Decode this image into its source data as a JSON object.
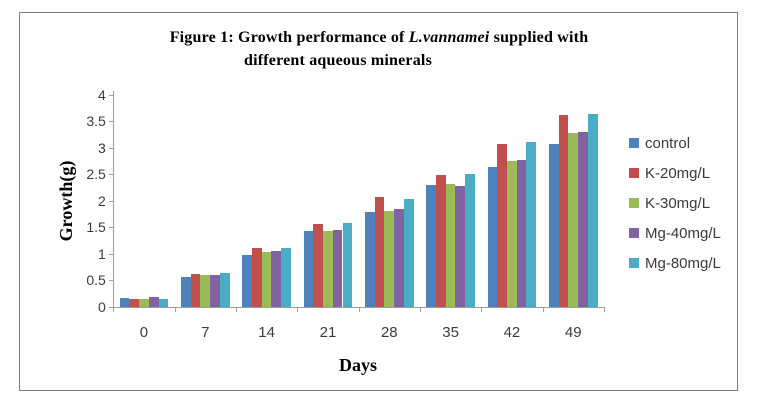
{
  "title": {
    "line1_prefix": "Figure 1: Growth performance of ",
    "line1_italic": "L.vannamei",
    "line1_suffix": " supplied with",
    "line2": "different aqueous minerals"
  },
  "chart_data": {
    "type": "bar",
    "title": "Figure 1: Growth performance of L.vannamei supplied with different aqueous minerals",
    "xlabel": "Days",
    "ylabel": "Growth(g)",
    "categories": [
      "0",
      "7",
      "14",
      "21",
      "28",
      "35",
      "42",
      "49"
    ],
    "series": [
      {
        "name": "control",
        "color": "#4F81BD",
        "values": [
          0.17,
          0.57,
          0.98,
          1.43,
          1.8,
          2.31,
          2.64,
          3.08
        ]
      },
      {
        "name": "K-20mg/L",
        "color": "#C0504D",
        "values": [
          0.15,
          0.63,
          1.12,
          1.57,
          2.07,
          2.5,
          3.08,
          3.63
        ]
      },
      {
        "name": "K-30mg/L",
        "color": "#9BBB59",
        "values": [
          0.16,
          0.61,
          1.03,
          1.43,
          1.81,
          2.33,
          2.75,
          3.28
        ]
      },
      {
        "name": "Mg-40mg/L",
        "color": "#8064A2",
        "values": [
          0.18,
          0.61,
          1.05,
          1.46,
          1.85,
          2.29,
          2.78,
          3.3
        ]
      },
      {
        "name": "Mg-80mg/L",
        "color": "#4BACC6",
        "values": [
          0.16,
          0.65,
          1.12,
          1.58,
          2.03,
          2.51,
          3.11,
          3.65
        ]
      }
    ],
    "ylim": [
      0,
      4
    ],
    "ytick_step": 0.5,
    "grid": false,
    "legend_position": "right"
  },
  "colors": {
    "axis": "#9e9e9e",
    "tick_text": "#3c3c3c",
    "frame_border": "#7e7e7e"
  }
}
